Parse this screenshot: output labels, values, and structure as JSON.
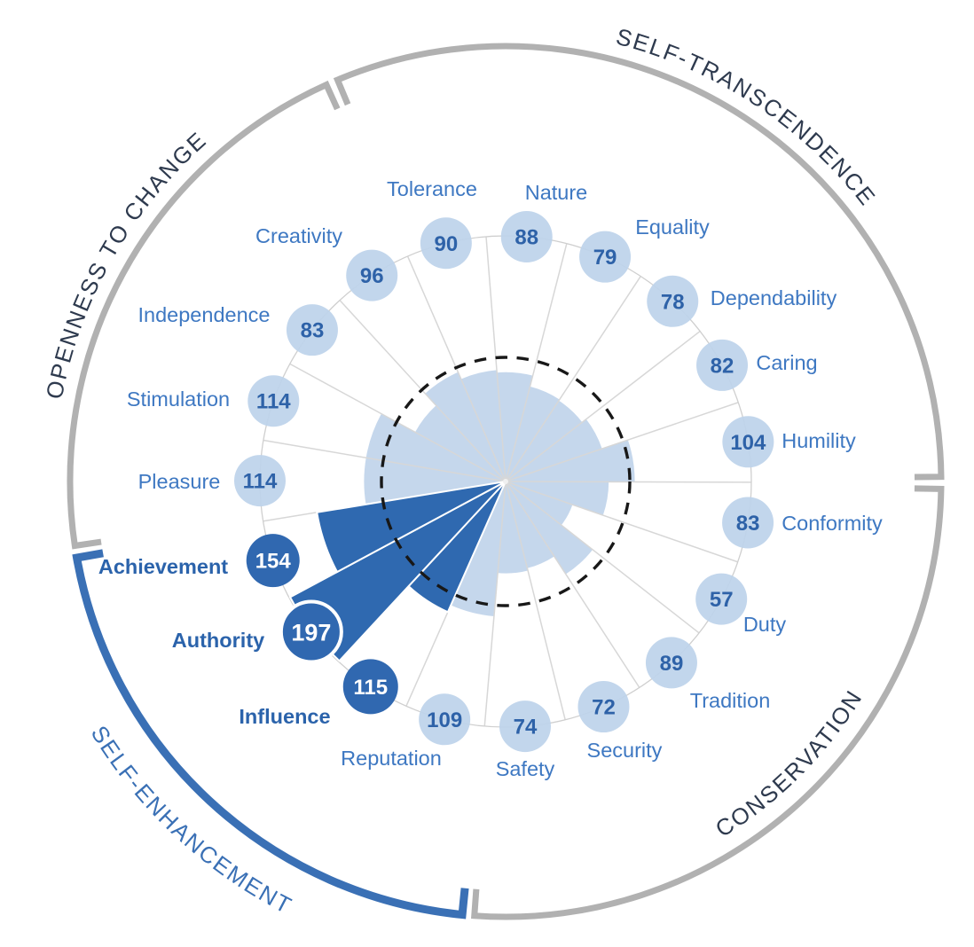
{
  "chart_data": {
    "type": "radial-bar",
    "sectors": 19,
    "reference_circle_value": 100,
    "series": [
      {
        "label": "Tolerance",
        "value": 90,
        "group": "self-transcendence",
        "highlighted": false
      },
      {
        "label": "Nature",
        "value": 88,
        "group": "self-transcendence",
        "highlighted": false
      },
      {
        "label": "Equality",
        "value": 79,
        "group": "self-transcendence",
        "highlighted": false
      },
      {
        "label": "Dependability",
        "value": 78,
        "group": "self-transcendence",
        "highlighted": false
      },
      {
        "label": "Caring",
        "value": 82,
        "group": "self-transcendence",
        "highlighted": false
      },
      {
        "label": "Humility",
        "value": 104,
        "group": "self-transcendence",
        "highlighted": false
      },
      {
        "label": "Conformity",
        "value": 83,
        "group": "conservation",
        "highlighted": false
      },
      {
        "label": "Duty",
        "value": 57,
        "group": "conservation",
        "highlighted": false
      },
      {
        "label": "Tradition",
        "value": 89,
        "group": "conservation",
        "highlighted": false
      },
      {
        "label": "Security",
        "value": 72,
        "group": "conservation",
        "highlighted": false
      },
      {
        "label": "Safety",
        "value": 74,
        "group": "conservation",
        "highlighted": false
      },
      {
        "label": "Reputation",
        "value": 109,
        "group": "self-enhancement",
        "highlighted": false
      },
      {
        "label": "Influence",
        "value": 115,
        "group": "self-enhancement",
        "highlighted": true
      },
      {
        "label": "Authority",
        "value": 197,
        "group": "self-enhancement",
        "highlighted": true,
        "emphasis_ring": true
      },
      {
        "label": "Achievement",
        "value": 154,
        "group": "self-enhancement",
        "highlighted": true
      },
      {
        "label": "Pleasure",
        "value": 114,
        "group": "openness-to-change",
        "highlighted": false
      },
      {
        "label": "Stimulation",
        "value": 114,
        "group": "openness-to-change",
        "highlighted": false
      },
      {
        "label": "Independence",
        "value": 83,
        "group": "openness-to-change",
        "highlighted": false
      },
      {
        "label": "Creativity",
        "value": 96,
        "group": "openness-to-change",
        "highlighted": false
      }
    ],
    "groups": [
      {
        "id": "self-transcendence",
        "label": "SELF-TRANSCENDENCE",
        "arc_color": "#b1b1b1",
        "text_color": "#2e3a4e",
        "members": [
          "Tolerance",
          "Nature",
          "Equality",
          "Dependability",
          "Caring",
          "Humility"
        ]
      },
      {
        "id": "conservation",
        "label": "CONSERVATION",
        "arc_color": "#b1b1b1",
        "text_color": "#2e3a4e",
        "members": [
          "Conformity",
          "Duty",
          "Tradition",
          "Security",
          "Safety"
        ]
      },
      {
        "id": "self-enhancement",
        "label": "SELF-ENHANCEMENT",
        "arc_color": "#3a70b5",
        "text_color": "#3a70b5",
        "members": [
          "Reputation",
          "Influence",
          "Authority",
          "Achievement"
        ]
      },
      {
        "id": "openness-to-change",
        "label": "OPENNESS TO CHANGE",
        "arc_color": "#b1b1b1",
        "text_color": "#2e3a4e",
        "members": [
          "Pleasure",
          "Stimulation",
          "Independence",
          "Creativity"
        ]
      }
    ]
  },
  "colors": {
    "wedge_light": "#c5d7ec",
    "wedge_dark": "#2f69b0",
    "badge_light": "#bdd3eb",
    "badge_dark": "#3068b0",
    "badge_text_light": "#2e62a8",
    "badge_text_dark": "#ffffff",
    "label_blue": "#3e78c2",
    "label_highlight": "#2b63ab",
    "grid_line": "#d7d7d7",
    "badge_ring_line": "#cfcfcf",
    "dashed_circle": "#181818",
    "group_arc_gray": "#b1b1b1",
    "group_arc_blue": "#3a70b5",
    "group_text_navy": "#2e3a4e",
    "background": "#ffffff"
  }
}
